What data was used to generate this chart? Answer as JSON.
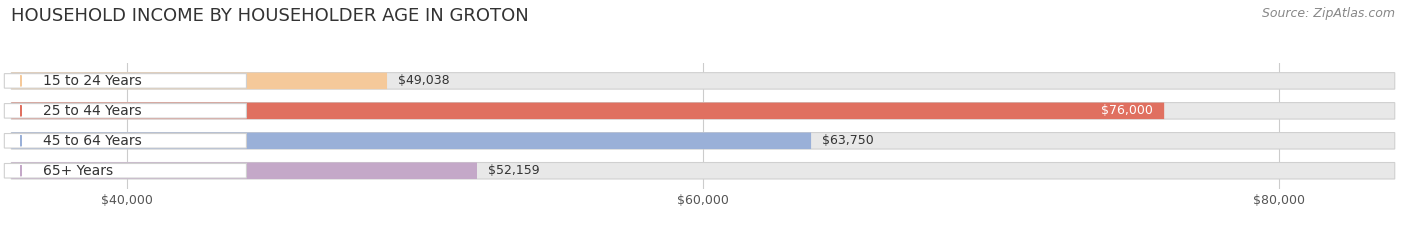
{
  "title": "HOUSEHOLD INCOME BY HOUSEHOLDER AGE IN GROTON",
  "source": "Source: ZipAtlas.com",
  "categories": [
    "15 to 24 Years",
    "25 to 44 Years",
    "45 to 64 Years",
    "65+ Years"
  ],
  "values": [
    49038,
    76000,
    63750,
    52159
  ],
  "labels": [
    "$49,038",
    "$76,000",
    "$63,750",
    "$52,159"
  ],
  "bar_colors": [
    "#f5c99a",
    "#e07060",
    "#9ab0d8",
    "#c4a8c8"
  ],
  "xlim_min": 36000,
  "xlim_max": 84000,
  "xticks": [
    40000,
    60000,
    80000
  ],
  "xtick_labels": [
    "$40,000",
    "$60,000",
    "$80,000"
  ],
  "bg_color": "#ffffff",
  "bar_bg_color": "#e8e8e8",
  "bar_bg_edge": "#d0d0d0",
  "title_fontsize": 13,
  "source_fontsize": 9,
  "label_fontsize": 9,
  "tick_fontsize": 9,
  "cat_fontsize": 10
}
